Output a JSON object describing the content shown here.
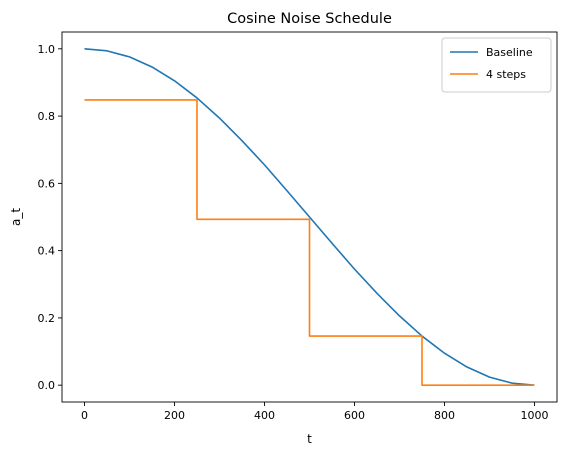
{
  "chart_data": {
    "type": "line",
    "title": "Cosine Noise Schedule",
    "xlabel": "t",
    "ylabel": "a_t",
    "xlim": [
      -50,
      1050
    ],
    "ylim": [
      -0.05,
      1.05
    ],
    "xticks": [
      0,
      200,
      400,
      600,
      800,
      1000
    ],
    "yticks": [
      0.0,
      0.2,
      0.4,
      0.6,
      0.8,
      1.0
    ],
    "xtick_labels": [
      "0",
      "200",
      "400",
      "600",
      "800",
      "1000"
    ],
    "ytick_labels": [
      "0.0",
      "0.2",
      "0.4",
      "0.6",
      "0.8",
      "1.0"
    ],
    "grid": false,
    "legend_position": "top-right",
    "series": [
      {
        "name": "Baseline",
        "color": "#1f77b4",
        "x": [
          0,
          50,
          100,
          150,
          200,
          250,
          300,
          350,
          400,
          450,
          500,
          550,
          600,
          650,
          700,
          750,
          800,
          850,
          900,
          950,
          1000
        ],
        "y": [
          1.0,
          0.994,
          0.976,
          0.946,
          0.905,
          0.854,
          0.794,
          0.727,
          0.655,
          0.578,
          0.5,
          0.422,
          0.345,
          0.273,
          0.206,
          0.146,
          0.095,
          0.054,
          0.024,
          0.006,
          0.0
        ]
      },
      {
        "name": "4 steps",
        "color": "#ff7f0e",
        "x": [
          0,
          250,
          250,
          500,
          500,
          750,
          750,
          1000
        ],
        "y": [
          0.848,
          0.848,
          0.493,
          0.493,
          0.146,
          0.146,
          0.0,
          0.0
        ]
      }
    ]
  }
}
